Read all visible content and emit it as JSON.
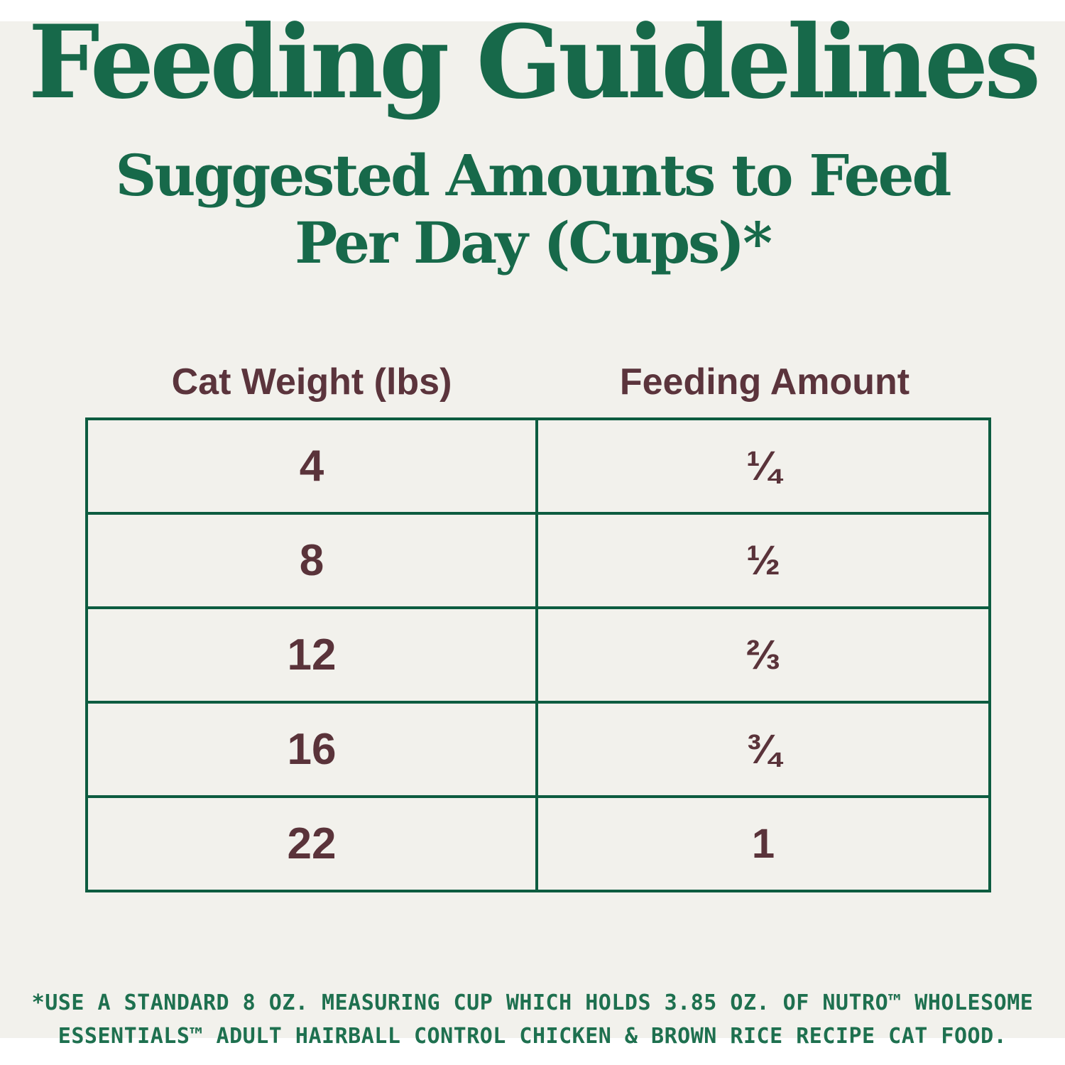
{
  "page": {
    "title": "Feeding Guidelines",
    "subtitle_line1": "Suggested Amounts to Feed",
    "subtitle_line2": "Per Day (Cups)*"
  },
  "table": {
    "col1_header": "Cat Weight (lbs)",
    "col2_header": "Feeding Amount",
    "rows": [
      {
        "weight": "4",
        "amount": "¼"
      },
      {
        "weight": "8",
        "amount": "½"
      },
      {
        "weight": "12",
        "amount": "⅔"
      },
      {
        "weight": "16",
        "amount": "¾"
      },
      {
        "weight": "22",
        "amount": "1"
      }
    ]
  },
  "footnote": {
    "line1": "*USE A STANDARD 8 OZ. MEASURING CUP WHICH HOLDS 3.85 OZ. OF NUTRO™ WHOLESOME",
    "line2": "ESSENTIALS™ ADULT HAIRBALL CONTROL CHICKEN & BROWN RICE RECIPE CAT FOOD."
  },
  "colors": {
    "heading_green": "#17694a",
    "table_border_green": "#0d5c40",
    "table_text_brown": "#5a333a",
    "footnote_green": "#1e704f",
    "background_cream": "#f2f1ec",
    "page_white": "#ffffff"
  },
  "chart_data": {
    "type": "table",
    "title": "Feeding Guidelines",
    "subtitle": "Suggested Amounts to Feed Per Day (Cups)*",
    "columns": [
      "Cat Weight (lbs)",
      "Feeding Amount"
    ],
    "rows": [
      [
        "4",
        "¼"
      ],
      [
        "8",
        "½"
      ],
      [
        "12",
        "⅔"
      ],
      [
        "16",
        "¾"
      ],
      [
        "22",
        "1"
      ]
    ],
    "rows_numeric": [
      {
        "cat_weight_lbs": 4,
        "feeding_amount_cups": 0.25
      },
      {
        "cat_weight_lbs": 8,
        "feeding_amount_cups": 0.5
      },
      {
        "cat_weight_lbs": 12,
        "feeding_amount_cups": 0.667
      },
      {
        "cat_weight_lbs": 16,
        "feeding_amount_cups": 0.75
      },
      {
        "cat_weight_lbs": 22,
        "feeding_amount_cups": 1
      }
    ],
    "footnote": "*USE A STANDARD 8 OZ. MEASURING CUP WHICH HOLDS 3.85 OZ. OF NUTRO™ WHOLESOME ESSENTIALS™ ADULT HAIRBALL CONTROL CHICKEN & BROWN RICE RECIPE CAT FOOD.",
    "grid": true,
    "legend_position": "none"
  }
}
